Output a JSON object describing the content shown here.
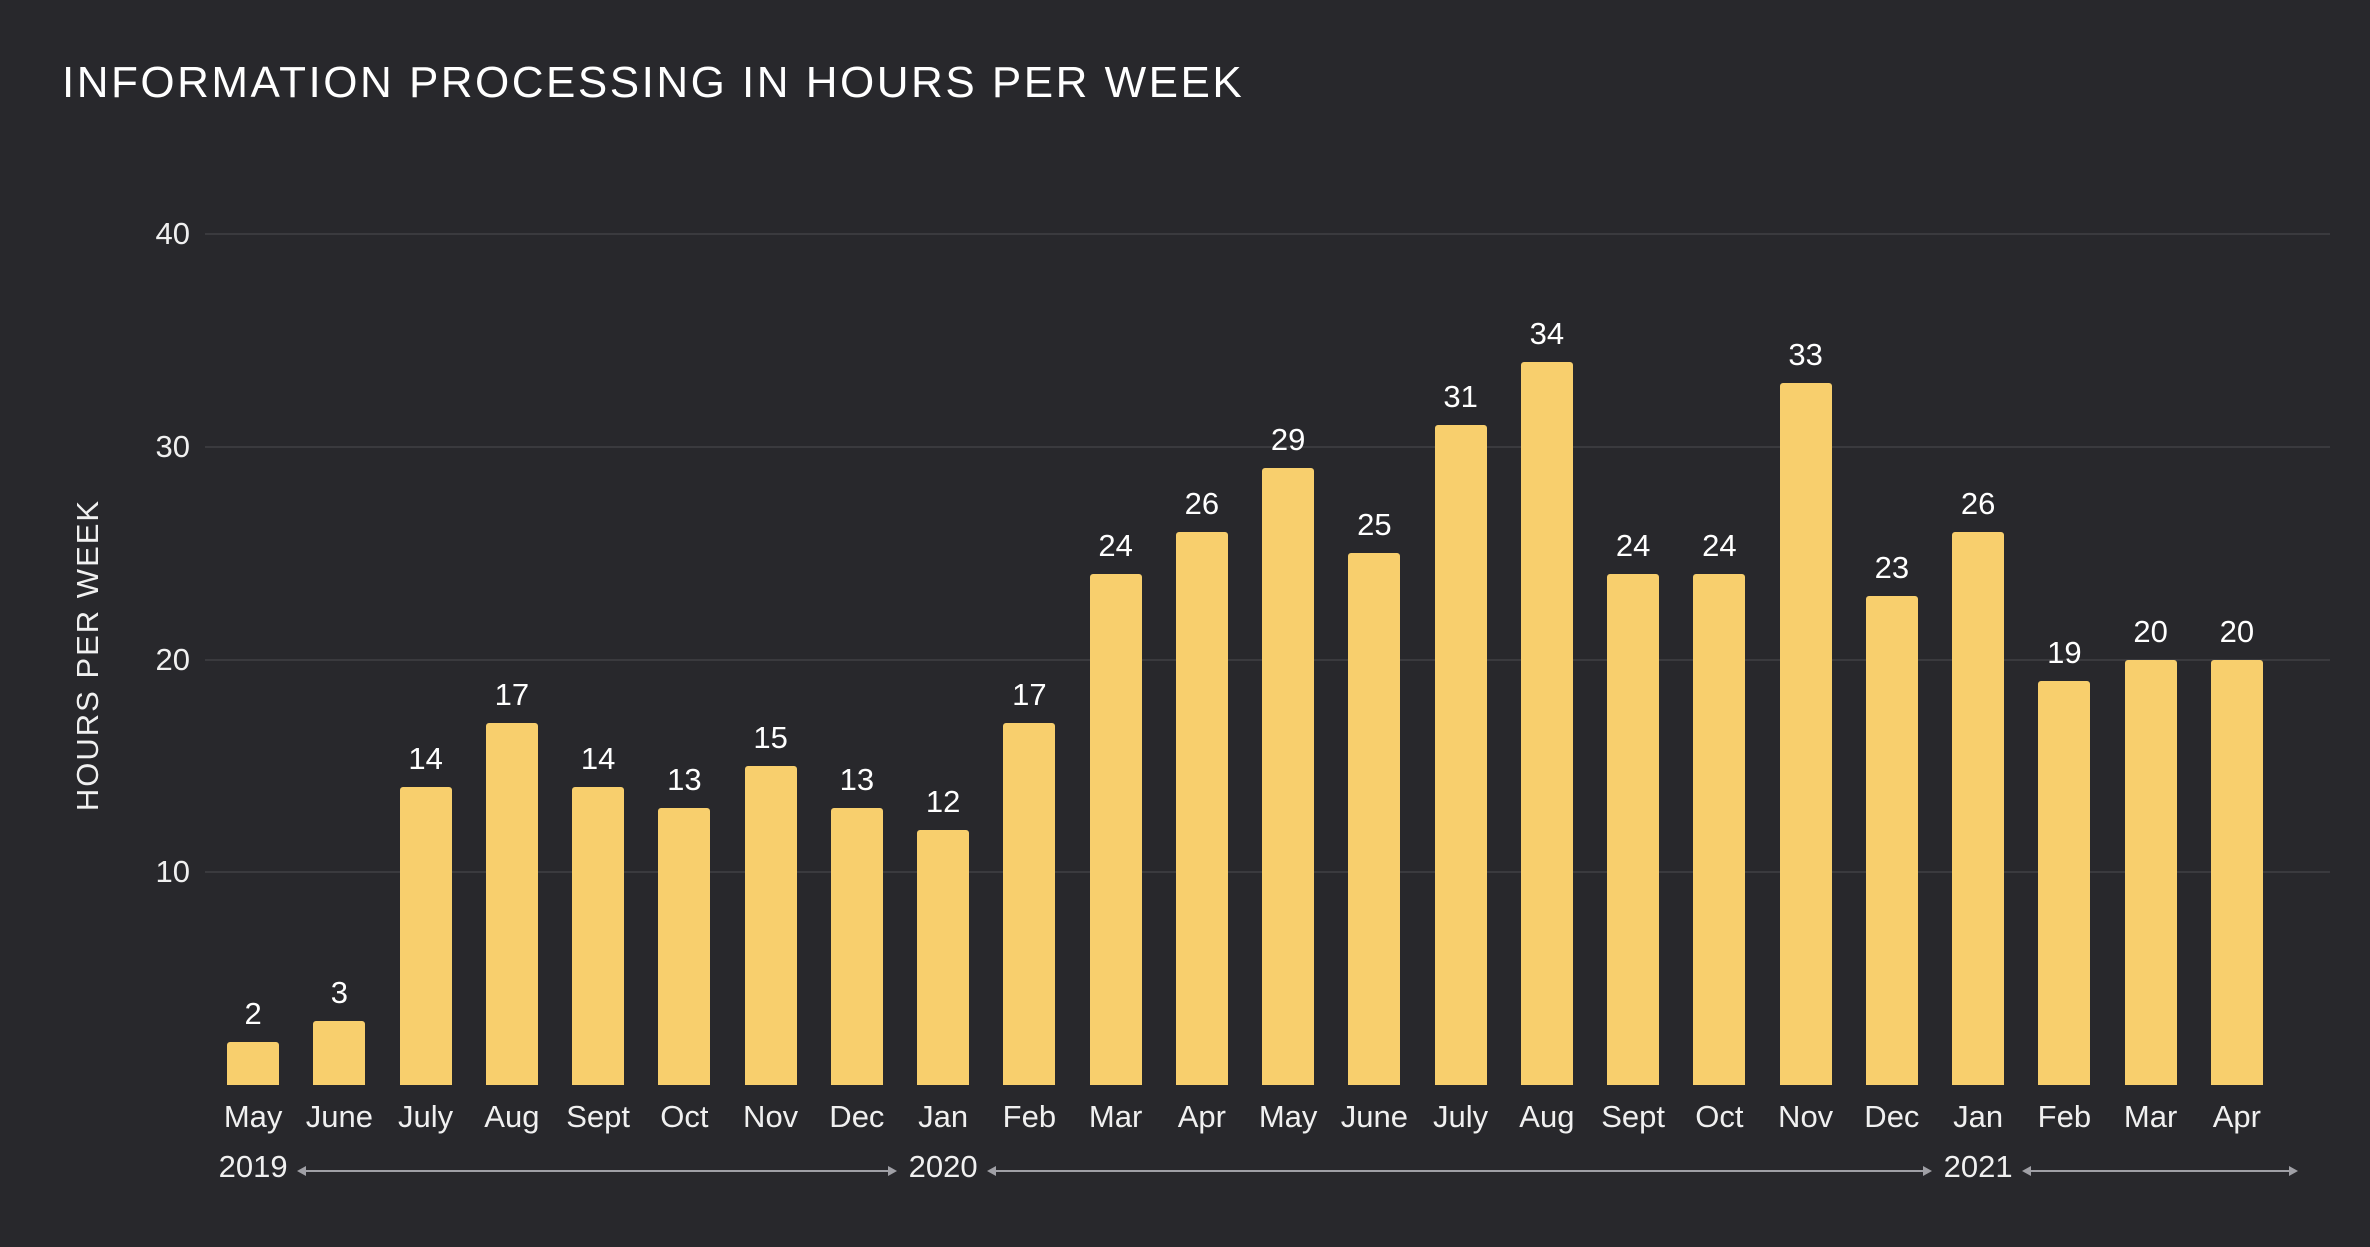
{
  "chart_data": {
    "type": "bar",
    "title": "INFORMATION PROCESSING IN HOURS PER WEEK",
    "ylabel": "HOURS PER WEEK",
    "xlabel": "",
    "categories": [
      "May",
      "June",
      "July",
      "Aug",
      "Sept",
      "Oct",
      "Nov",
      "Dec",
      "Jan",
      "Feb",
      "Mar",
      "Apr",
      "May",
      "June",
      "July",
      "Aug",
      "Sept",
      "Oct",
      "Nov",
      "Dec",
      "Jan",
      "Feb",
      "Mar",
      "Apr"
    ],
    "values": [
      2,
      3,
      14,
      17,
      14,
      13,
      15,
      13,
      12,
      17,
      24,
      26,
      29,
      25,
      31,
      34,
      24,
      24,
      33,
      23,
      26,
      19,
      20,
      20
    ],
    "yticks": [
      10,
      20,
      30,
      40
    ],
    "ylim": [
      0,
      40
    ],
    "grid": "horizontal",
    "legend": "none",
    "value_labels": "above-bars",
    "year_markers": [
      {
        "label": "2019",
        "index": 0
      },
      {
        "label": "2020",
        "index": 8
      },
      {
        "label": "2021",
        "index": 20
      }
    ],
    "colors": {
      "bar": "#F8CF6D",
      "background": "#28282C",
      "text": "#FFFFFF",
      "axis_text": "#F0F0F0",
      "gridline": "#3A3A3E",
      "year_line": "#A0A0A6"
    }
  }
}
